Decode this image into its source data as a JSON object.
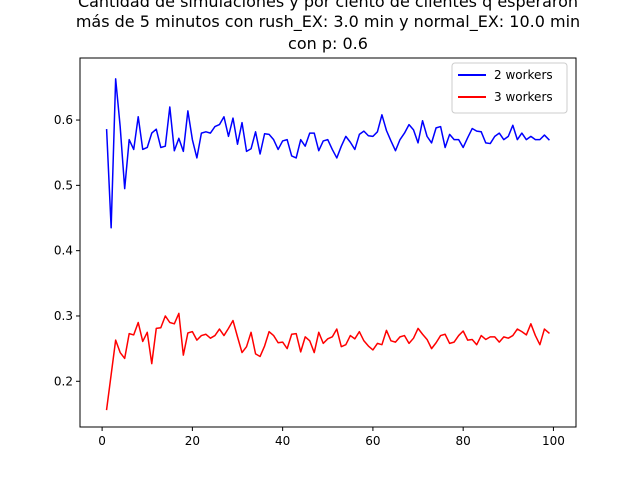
{
  "chart_data": {
    "type": "line",
    "title_lines": [
      "Cantidad de simulaciones y por ciento de clientes q esperaron",
      "más de 5 minutos con rush_EX: 3.0 min y normal_EX: 10.0 min",
      "con p: 0.6"
    ],
    "xlabel": "",
    "ylabel": "",
    "xlim": [
      -4.9,
      105
    ],
    "ylim": [
      0.13,
      0.695
    ],
    "xticks": [
      0,
      20,
      40,
      60,
      80,
      100
    ],
    "yticks": [
      0.2,
      0.3,
      0.4,
      0.5,
      0.6
    ],
    "ytick_labels": [
      "0.2",
      "0.3",
      "0.4",
      "0.5",
      "0.6"
    ],
    "grid": false,
    "legend_position": "upper right",
    "x": [
      1,
      2,
      3,
      4,
      5,
      6,
      7,
      8,
      9,
      10,
      11,
      12,
      13,
      14,
      15,
      16,
      17,
      18,
      19,
      20,
      21,
      22,
      23,
      24,
      25,
      26,
      27,
      28,
      29,
      30,
      31,
      32,
      33,
      34,
      35,
      36,
      37,
      38,
      39,
      40,
      41,
      42,
      43,
      44,
      45,
      46,
      47,
      48,
      49,
      50,
      51,
      52,
      53,
      54,
      55,
      56,
      57,
      58,
      59,
      60,
      61,
      62,
      63,
      64,
      65,
      66,
      67,
      68,
      69,
      70,
      71,
      72,
      73,
      74,
      75,
      76,
      77,
      78,
      79,
      80,
      81,
      82,
      83,
      84,
      85,
      86,
      87,
      88,
      89,
      90,
      91,
      92,
      93,
      94,
      95,
      96,
      97,
      98,
      99
    ],
    "series": [
      {
        "name": "2 workers",
        "color": "#0000ff",
        "values": [
          0.585,
          0.435,
          0.663,
          0.59,
          0.495,
          0.57,
          0.555,
          0.605,
          0.555,
          0.558,
          0.58,
          0.586,
          0.558,
          0.56,
          0.62,
          0.553,
          0.572,
          0.552,
          0.614,
          0.57,
          0.542,
          0.58,
          0.582,
          0.58,
          0.59,
          0.593,
          0.605,
          0.575,
          0.603,
          0.563,
          0.596,
          0.552,
          0.556,
          0.582,
          0.548,
          0.579,
          0.578,
          0.57,
          0.555,
          0.568,
          0.57,
          0.545,
          0.542,
          0.57,
          0.56,
          0.58,
          0.58,
          0.553,
          0.568,
          0.57,
          0.555,
          0.542,
          0.56,
          0.575,
          0.566,
          0.555,
          0.578,
          0.583,
          0.576,
          0.575,
          0.582,
          0.608,
          0.584,
          0.568,
          0.553,
          0.57,
          0.58,
          0.593,
          0.585,
          0.565,
          0.599,
          0.575,
          0.565,
          0.588,
          0.59,
          0.558,
          0.578,
          0.57,
          0.57,
          0.558,
          0.573,
          0.587,
          0.583,
          0.582,
          0.565,
          0.564,
          0.575,
          0.58,
          0.57,
          0.575,
          0.592,
          0.57,
          0.58,
          0.57,
          0.575,
          0.57,
          0.57,
          0.577,
          0.57
        ]
      },
      {
        "name": "3 workers",
        "color": "#ff0000",
        "values": [
          0.157,
          0.21,
          0.263,
          0.244,
          0.235,
          0.273,
          0.271,
          0.29,
          0.261,
          0.275,
          0.227,
          0.281,
          0.282,
          0.3,
          0.29,
          0.288,
          0.304,
          0.24,
          0.274,
          0.276,
          0.263,
          0.27,
          0.272,
          0.266,
          0.27,
          0.28,
          0.27,
          0.281,
          0.293,
          0.268,
          0.244,
          0.253,
          0.275,
          0.242,
          0.238,
          0.254,
          0.276,
          0.27,
          0.259,
          0.26,
          0.25,
          0.272,
          0.273,
          0.245,
          0.268,
          0.262,
          0.244,
          0.275,
          0.258,
          0.265,
          0.268,
          0.28,
          0.253,
          0.256,
          0.27,
          0.265,
          0.276,
          0.262,
          0.254,
          0.248,
          0.258,
          0.256,
          0.278,
          0.262,
          0.26,
          0.268,
          0.27,
          0.258,
          0.266,
          0.281,
          0.272,
          0.264,
          0.25,
          0.259,
          0.27,
          0.272,
          0.258,
          0.26,
          0.27,
          0.277,
          0.263,
          0.264,
          0.256,
          0.27,
          0.264,
          0.268,
          0.268,
          0.26,
          0.268,
          0.266,
          0.27,
          0.28,
          0.276,
          0.271,
          0.288,
          0.27,
          0.256,
          0.28,
          0.274
        ]
      }
    ]
  }
}
